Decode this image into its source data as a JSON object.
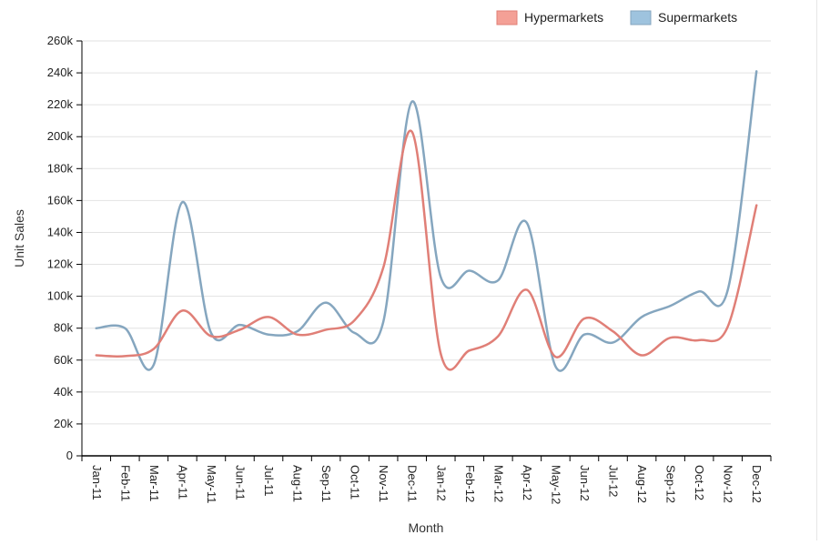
{
  "colors": {
    "hypermarkets_line": "#e07f77",
    "hypermarkets_swatch": "#f4a096",
    "supermarkets_line": "#85a6bf",
    "supermarkets_swatch": "#9ec3de",
    "grid": "#e2e2e2",
    "axis": "#000000"
  },
  "chart_data": {
    "type": "line",
    "xlabel": "Month",
    "ylabel": "Unit Sales",
    "ylim": [
      0,
      260000
    ],
    "ytick_labels": [
      "0",
      "20k",
      "40k",
      "60k",
      "80k",
      "100k",
      "120k",
      "140k",
      "160k",
      "180k",
      "200k",
      "220k",
      "240k",
      "260k"
    ],
    "ytick_values": [
      0,
      20000,
      40000,
      60000,
      80000,
      100000,
      120000,
      140000,
      160000,
      180000,
      200000,
      220000,
      240000,
      260000
    ],
    "grid": true,
    "legend_position": "top-right",
    "categories": [
      "Jan-11",
      "Feb-11",
      "Mar-11",
      "Apr-11",
      "May-11",
      "Jun-11",
      "Jul-11",
      "Aug-11",
      "Sep-11",
      "Oct-11",
      "Nov-11",
      "Dec-11",
      "Jan-12",
      "Feb-12",
      "Mar-12",
      "Apr-12",
      "May-12",
      "Jun-12",
      "Jul-12",
      "Aug-12",
      "Sep-12",
      "Oct-12",
      "Nov-12",
      "Dec-12"
    ],
    "series": [
      {
        "name": "Hypermarkets",
        "values": [
          63000,
          62500,
          67000,
          91000,
          75000,
          79000,
          87000,
          76000,
          79000,
          85000,
          118000,
          203000,
          64000,
          66000,
          75000,
          104000,
          62000,
          86000,
          78000,
          63000,
          74000,
          72500,
          81000,
          157000
        ]
      },
      {
        "name": "Supermarkets",
        "values": [
          80000,
          80000,
          57000,
          159000,
          77000,
          82000,
          76000,
          78000,
          96000,
          77000,
          84000,
          222000,
          112000,
          116000,
          110000,
          146000,
          56000,
          76000,
          71000,
          87000,
          94000,
          103000,
          104000,
          241000
        ]
      }
    ]
  }
}
